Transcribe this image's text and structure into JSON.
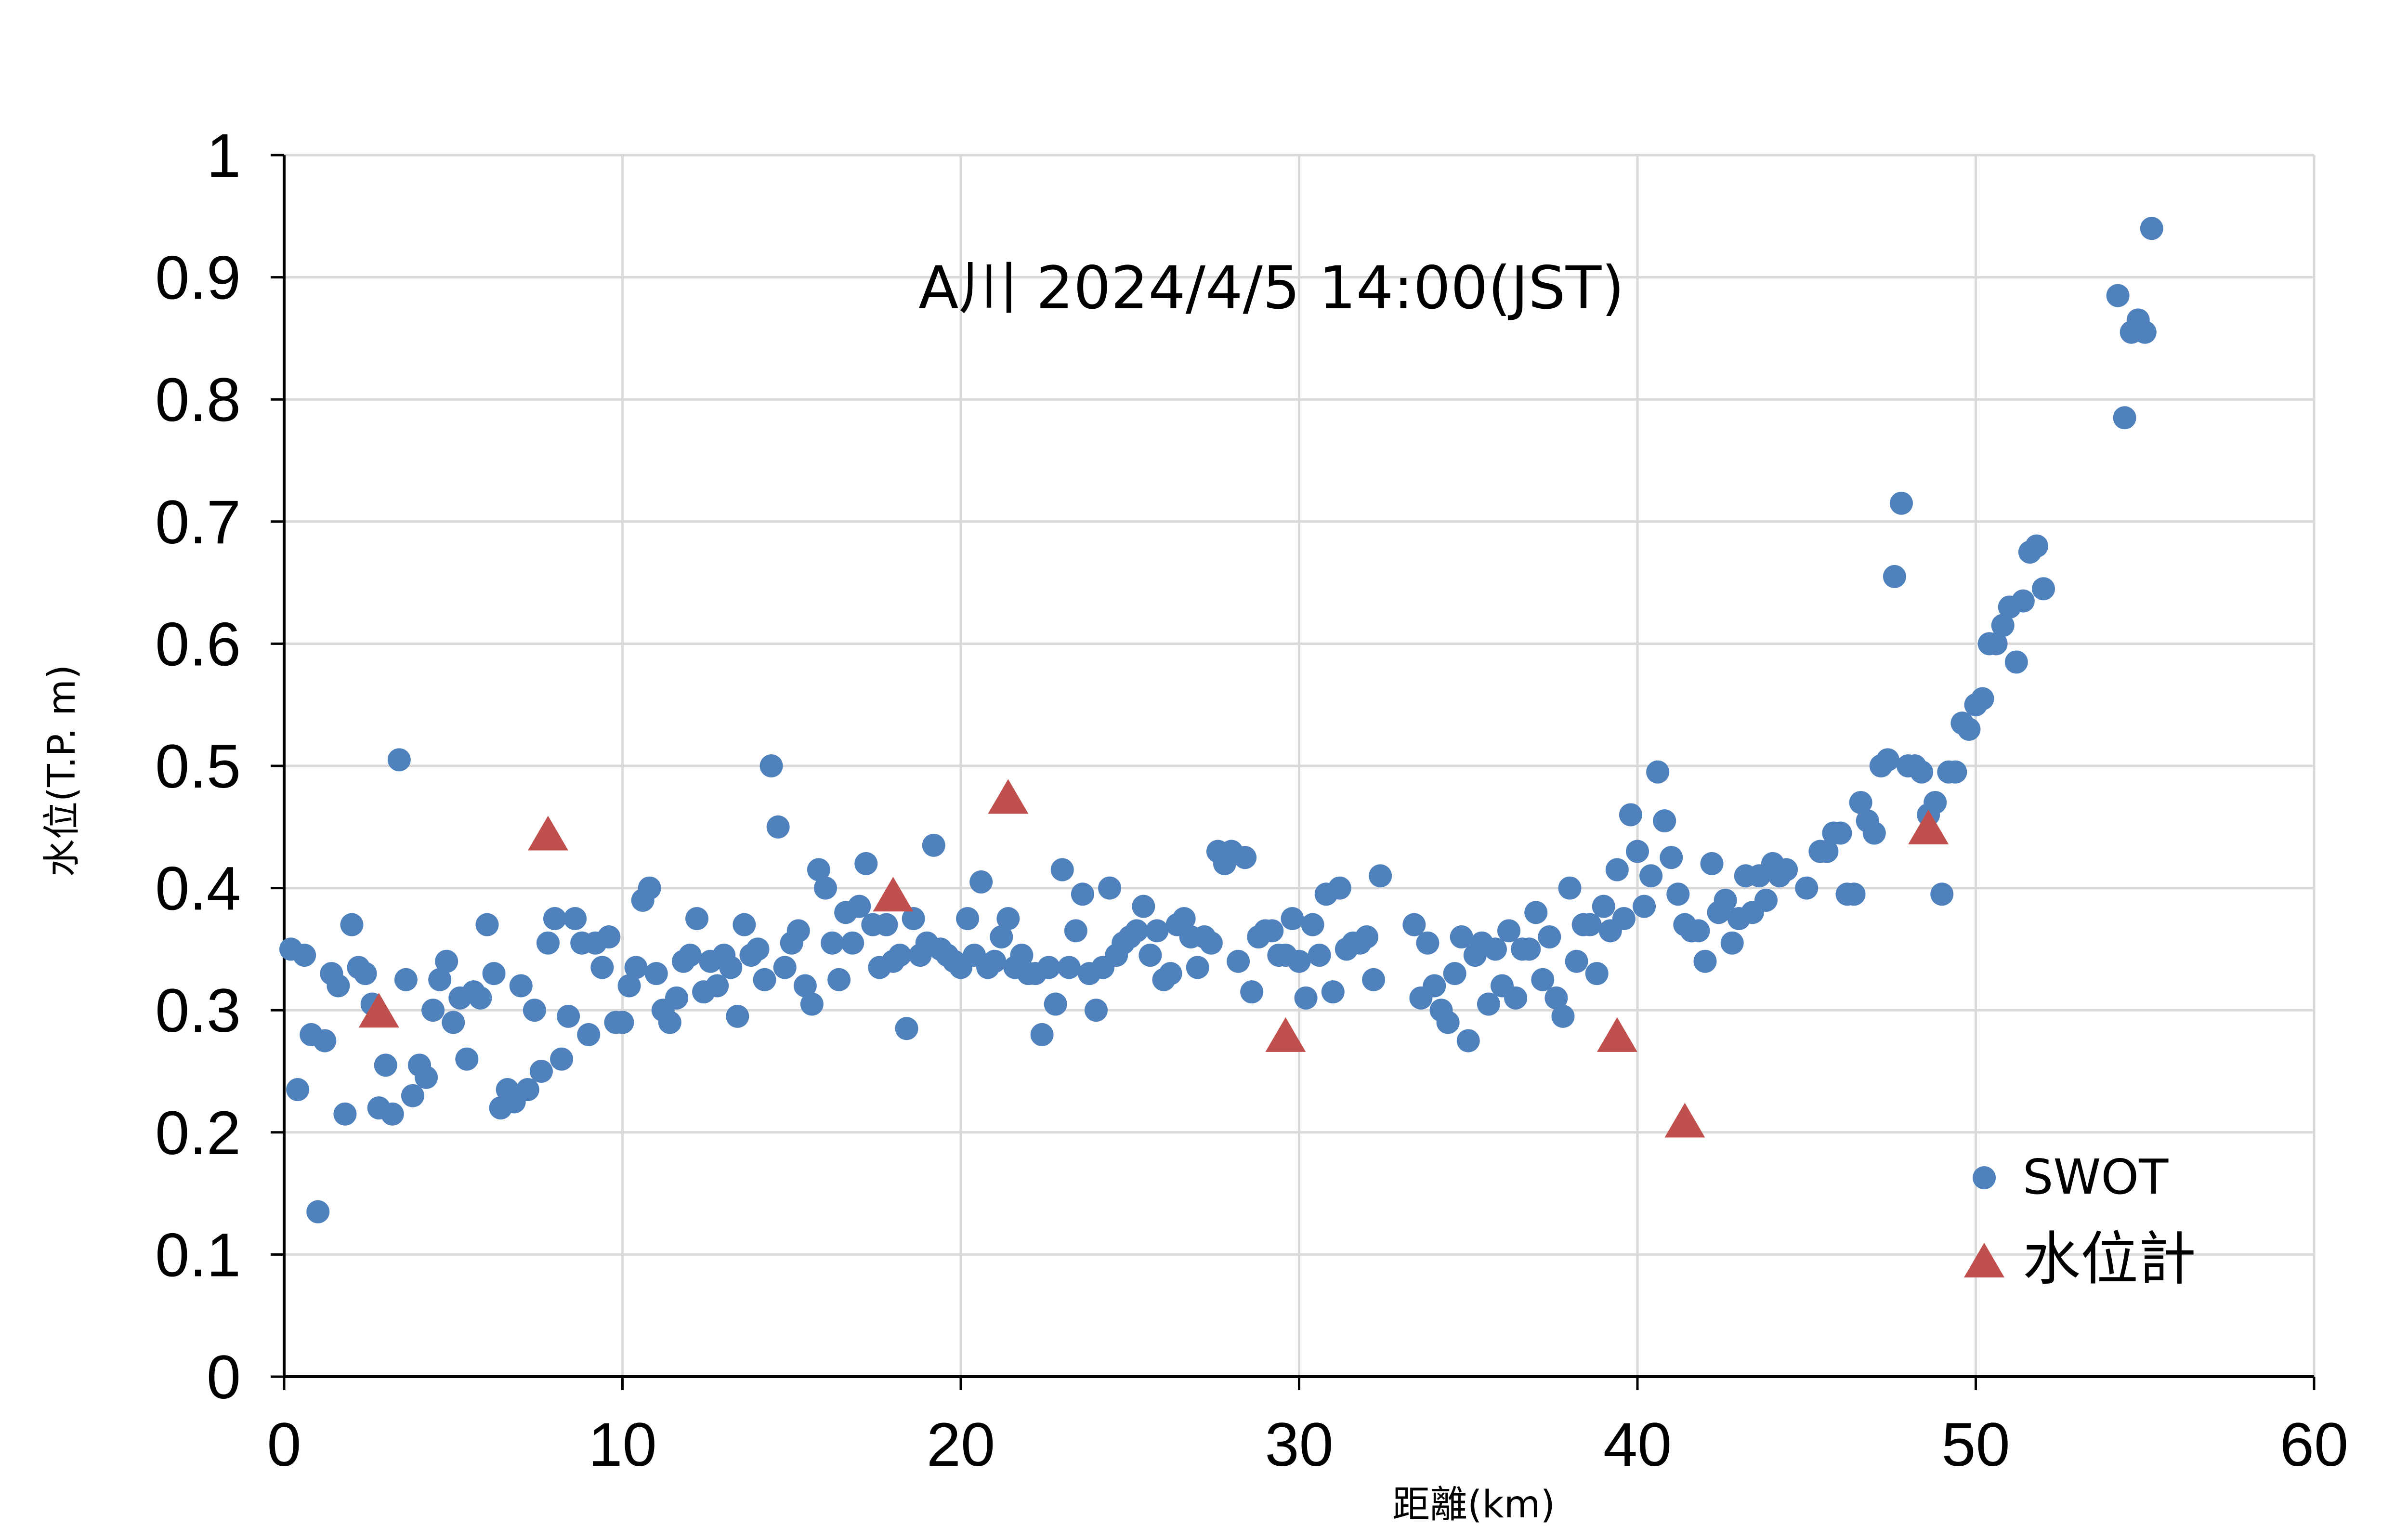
{
  "chart_data": {
    "type": "scatter",
    "title": "A川 2024/4/5 14:00(JST)",
    "xlabel": "距離(km)",
    "ylabel": "水位(T.P. m)",
    "xlim": [
      0,
      60
    ],
    "ylim": [
      0,
      1
    ],
    "x_ticks": [
      "0",
      "10",
      "20",
      "30",
      "40",
      "50",
      "60"
    ],
    "y_ticks": [
      "0",
      "0.1",
      "0.2",
      "0.3",
      "0.4",
      "0.5",
      "0.6",
      "0.7",
      "0.8",
      "0.9",
      "1"
    ],
    "grid": true,
    "legend_position": "bottom-right",
    "series": [
      {
        "name": "SWOT",
        "marker": "circle",
        "color": "#4F81BD",
        "points": [
          [
            0.2,
            0.35
          ],
          [
            0.4,
            0.235
          ],
          [
            0.6,
            0.345
          ],
          [
            0.8,
            0.28
          ],
          [
            1.0,
            0.135
          ],
          [
            1.2,
            0.275
          ],
          [
            1.4,
            0.33
          ],
          [
            1.6,
            0.32
          ],
          [
            1.8,
            0.215
          ],
          [
            2.0,
            0.37
          ],
          [
            2.2,
            0.335
          ],
          [
            2.4,
            0.33
          ],
          [
            2.6,
            0.305
          ],
          [
            2.8,
            0.22
          ],
          [
            3.0,
            0.255
          ],
          [
            3.2,
            0.215
          ],
          [
            3.4,
            0.505
          ],
          [
            3.6,
            0.325
          ],
          [
            3.8,
            0.23
          ],
          [
            4.0,
            0.255
          ],
          [
            4.2,
            0.245
          ],
          [
            4.4,
            0.3
          ],
          [
            4.6,
            0.325
          ],
          [
            4.8,
            0.34
          ],
          [
            5.0,
            0.29
          ],
          [
            5.2,
            0.31
          ],
          [
            5.4,
            0.26
          ],
          [
            5.6,
            0.315
          ],
          [
            5.8,
            0.31
          ],
          [
            6.0,
            0.37
          ],
          [
            6.2,
            0.33
          ],
          [
            6.4,
            0.22
          ],
          [
            6.6,
            0.235
          ],
          [
            6.8,
            0.225
          ],
          [
            7.0,
            0.32
          ],
          [
            7.2,
            0.235
          ],
          [
            7.4,
            0.3
          ],
          [
            7.6,
            0.25
          ],
          [
            7.8,
            0.355
          ],
          [
            8.0,
            0.375
          ],
          [
            8.2,
            0.26
          ],
          [
            8.4,
            0.295
          ],
          [
            8.6,
            0.375
          ],
          [
            8.8,
            0.355
          ],
          [
            9.0,
            0.28
          ],
          [
            9.2,
            0.355
          ],
          [
            9.4,
            0.335
          ],
          [
            9.6,
            0.36
          ],
          [
            9.8,
            0.29
          ],
          [
            10.0,
            0.29
          ],
          [
            10.2,
            0.32
          ],
          [
            10.4,
            0.335
          ],
          [
            10.6,
            0.39
          ],
          [
            10.8,
            0.4
          ],
          [
            11.0,
            0.33
          ],
          [
            11.2,
            0.3
          ],
          [
            11.4,
            0.29
          ],
          [
            11.6,
            0.31
          ],
          [
            11.8,
            0.34
          ],
          [
            12.0,
            0.345
          ],
          [
            12.2,
            0.375
          ],
          [
            12.4,
            0.315
          ],
          [
            12.6,
            0.34
          ],
          [
            12.8,
            0.32
          ],
          [
            13.0,
            0.345
          ],
          [
            13.2,
            0.335
          ],
          [
            13.4,
            0.295
          ],
          [
            13.6,
            0.37
          ],
          [
            13.8,
            0.345
          ],
          [
            14.0,
            0.35
          ],
          [
            14.2,
            0.325
          ],
          [
            14.4,
            0.5
          ],
          [
            14.6,
            0.45
          ],
          [
            14.8,
            0.335
          ],
          [
            15.0,
            0.355
          ],
          [
            15.2,
            0.365
          ],
          [
            15.4,
            0.32
          ],
          [
            15.6,
            0.305
          ],
          [
            15.8,
            0.415
          ],
          [
            16.0,
            0.4
          ],
          [
            16.2,
            0.355
          ],
          [
            16.4,
            0.325
          ],
          [
            16.6,
            0.38
          ],
          [
            16.8,
            0.355
          ],
          [
            17.0,
            0.385
          ],
          [
            17.2,
            0.42
          ],
          [
            17.4,
            0.37
          ],
          [
            17.6,
            0.335
          ],
          [
            17.8,
            0.37
          ],
          [
            18.0,
            0.34
          ],
          [
            18.2,
            0.345
          ],
          [
            18.4,
            0.285
          ],
          [
            18.6,
            0.375
          ],
          [
            18.8,
            0.345
          ],
          [
            19.0,
            0.355
          ],
          [
            19.2,
            0.435
          ],
          [
            19.4,
            0.35
          ],
          [
            19.6,
            0.345
          ],
          [
            19.8,
            0.34
          ],
          [
            20.0,
            0.335
          ],
          [
            20.2,
            0.375
          ],
          [
            20.4,
            0.345
          ],
          [
            20.6,
            0.405
          ],
          [
            20.8,
            0.335
          ],
          [
            21.0,
            0.34
          ],
          [
            21.2,
            0.36
          ],
          [
            21.4,
            0.375
          ],
          [
            21.6,
            0.335
          ],
          [
            21.8,
            0.345
          ],
          [
            22.0,
            0.33
          ],
          [
            22.2,
            0.33
          ],
          [
            22.4,
            0.28
          ],
          [
            22.6,
            0.335
          ],
          [
            22.8,
            0.305
          ],
          [
            23.0,
            0.415
          ],
          [
            23.2,
            0.335
          ],
          [
            23.4,
            0.365
          ],
          [
            23.6,
            0.395
          ],
          [
            23.8,
            0.33
          ],
          [
            24.0,
            0.3
          ],
          [
            24.2,
            0.335
          ],
          [
            24.4,
            0.4
          ],
          [
            24.6,
            0.345
          ],
          [
            24.8,
            0.355
          ],
          [
            25.0,
            0.36
          ],
          [
            25.2,
            0.365
          ],
          [
            25.4,
            0.385
          ],
          [
            25.6,
            0.345
          ],
          [
            25.8,
            0.365
          ],
          [
            26.0,
            0.325
          ],
          [
            26.2,
            0.33
          ],
          [
            26.4,
            0.37
          ],
          [
            26.6,
            0.375
          ],
          [
            26.8,
            0.36
          ],
          [
            27.0,
            0.335
          ],
          [
            27.2,
            0.36
          ],
          [
            27.4,
            0.355
          ],
          [
            27.6,
            0.43
          ],
          [
            27.8,
            0.42
          ],
          [
            28.0,
            0.43
          ],
          [
            28.2,
            0.34
          ],
          [
            28.4,
            0.425
          ],
          [
            28.6,
            0.315
          ],
          [
            28.8,
            0.36
          ],
          [
            29.0,
            0.365
          ],
          [
            29.2,
            0.365
          ],
          [
            29.4,
            0.345
          ],
          [
            29.6,
            0.345
          ],
          [
            29.8,
            0.375
          ],
          [
            30.0,
            0.34
          ],
          [
            30.2,
            0.31
          ],
          [
            30.4,
            0.37
          ],
          [
            30.6,
            0.345
          ],
          [
            30.8,
            0.395
          ],
          [
            31.0,
            0.315
          ],
          [
            31.2,
            0.4
          ],
          [
            31.4,
            0.35
          ],
          [
            31.6,
            0.355
          ],
          [
            31.8,
            0.355
          ],
          [
            32.0,
            0.36
          ],
          [
            32.2,
            0.325
          ],
          [
            32.4,
            0.41
          ],
          [
            33.4,
            0.37
          ],
          [
            33.6,
            0.31
          ],
          [
            33.8,
            0.355
          ],
          [
            34.0,
            0.32
          ],
          [
            34.2,
            0.3
          ],
          [
            34.4,
            0.29
          ],
          [
            34.6,
            0.33
          ],
          [
            34.8,
            0.36
          ],
          [
            35.0,
            0.275
          ],
          [
            35.2,
            0.345
          ],
          [
            35.4,
            0.355
          ],
          [
            35.6,
            0.305
          ],
          [
            35.8,
            0.35
          ],
          [
            36.0,
            0.32
          ],
          [
            36.2,
            0.365
          ],
          [
            36.4,
            0.31
          ],
          [
            36.6,
            0.35
          ],
          [
            36.8,
            0.35
          ],
          [
            37.0,
            0.38
          ],
          [
            37.2,
            0.325
          ],
          [
            37.4,
            0.36
          ],
          [
            37.6,
            0.31
          ],
          [
            37.8,
            0.295
          ],
          [
            38.0,
            0.4
          ],
          [
            38.2,
            0.34
          ],
          [
            38.4,
            0.37
          ],
          [
            38.6,
            0.37
          ],
          [
            38.8,
            0.33
          ],
          [
            39.0,
            0.385
          ],
          [
            39.2,
            0.365
          ],
          [
            39.4,
            0.415
          ],
          [
            39.6,
            0.375
          ],
          [
            39.8,
            0.46
          ],
          [
            40.0,
            0.43
          ],
          [
            40.2,
            0.385
          ],
          [
            40.4,
            0.41
          ],
          [
            40.6,
            0.495
          ],
          [
            40.8,
            0.455
          ],
          [
            41.0,
            0.425
          ],
          [
            41.2,
            0.395
          ],
          [
            41.4,
            0.37
          ],
          [
            41.6,
            0.365
          ],
          [
            41.8,
            0.365
          ],
          [
            42.0,
            0.34
          ],
          [
            42.2,
            0.42
          ],
          [
            42.4,
            0.38
          ],
          [
            42.6,
            0.39
          ],
          [
            42.8,
            0.355
          ],
          [
            43.0,
            0.375
          ],
          [
            43.2,
            0.41
          ],
          [
            43.4,
            0.38
          ],
          [
            43.6,
            0.41
          ],
          [
            43.8,
            0.39
          ],
          [
            44.0,
            0.42
          ],
          [
            44.2,
            0.41
          ],
          [
            44.4,
            0.415
          ],
          [
            45.0,
            0.4
          ],
          [
            45.4,
            0.43
          ],
          [
            45.6,
            0.43
          ],
          [
            45.8,
            0.445
          ],
          [
            46.0,
            0.445
          ],
          [
            46.2,
            0.395
          ],
          [
            46.4,
            0.395
          ],
          [
            46.6,
            0.47
          ],
          [
            46.8,
            0.455
          ],
          [
            47.0,
            0.445
          ],
          [
            47.2,
            0.5
          ],
          [
            47.4,
            0.505
          ],
          [
            47.6,
            0.655
          ],
          [
            47.8,
            0.715
          ],
          [
            48.0,
            0.5
          ],
          [
            48.2,
            0.5
          ],
          [
            48.4,
            0.495
          ],
          [
            48.6,
            0.46
          ],
          [
            48.8,
            0.47
          ],
          [
            49.0,
            0.395
          ],
          [
            49.2,
            0.495
          ],
          [
            49.4,
            0.495
          ],
          [
            49.6,
            0.535
          ],
          [
            49.8,
            0.53
          ],
          [
            50.0,
            0.55
          ],
          [
            50.2,
            0.555
          ],
          [
            50.4,
            0.6
          ],
          [
            50.6,
            0.6
          ],
          [
            50.8,
            0.615
          ],
          [
            51.0,
            0.63
          ],
          [
            51.2,
            0.585
          ],
          [
            51.4,
            0.635
          ],
          [
            51.6,
            0.675
          ],
          [
            51.8,
            0.68
          ],
          [
            52.0,
            0.645
          ],
          [
            54.2,
            0.885
          ],
          [
            54.4,
            0.785
          ],
          [
            54.6,
            0.855
          ],
          [
            54.8,
            0.865
          ],
          [
            55.0,
            0.855
          ],
          [
            55.2,
            0.94
          ]
        ]
      },
      {
        "name": "水位計",
        "marker": "triangle",
        "color": "#C0504D",
        "points": [
          [
            2.8,
            0.3
          ],
          [
            7.8,
            0.445
          ],
          [
            18.0,
            0.395
          ],
          [
            21.4,
            0.475
          ],
          [
            29.6,
            0.28
          ],
          [
            39.4,
            0.28
          ],
          [
            41.4,
            0.21
          ],
          [
            48.6,
            0.45
          ]
        ]
      }
    ]
  }
}
